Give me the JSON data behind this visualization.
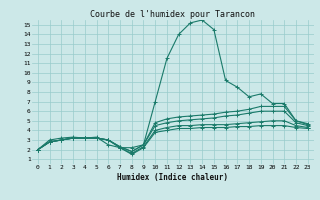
{
  "title": "Courbe de l'humidex pour Tarancon",
  "xlabel": "Humidex (Indice chaleur)",
  "ylabel": "",
  "xlim": [
    -0.5,
    23.5
  ],
  "ylim": [
    0.5,
    15.5
  ],
  "xticks": [
    0,
    1,
    2,
    3,
    4,
    5,
    6,
    7,
    8,
    9,
    10,
    11,
    12,
    13,
    14,
    15,
    16,
    17,
    18,
    19,
    20,
    21,
    22,
    23
  ],
  "yticks": [
    1,
    2,
    3,
    4,
    5,
    6,
    7,
    8,
    9,
    10,
    11,
    12,
    13,
    14,
    15
  ],
  "background_color": "#cce8e8",
  "grid_color": "#99cccc",
  "line_color": "#1a7a6a",
  "lines": [
    [
      2.0,
      3.0,
      3.2,
      3.3,
      3.2,
      3.3,
      2.5,
      2.2,
      2.2,
      2.5,
      7.0,
      11.5,
      14.0,
      15.2,
      15.5,
      14.5,
      9.2,
      8.5,
      7.5,
      7.8,
      6.8,
      6.8,
      5.0,
      4.7
    ],
    [
      2.0,
      2.8,
      3.0,
      3.2,
      3.2,
      3.2,
      3.0,
      2.3,
      1.8,
      2.5,
      4.8,
      5.2,
      5.4,
      5.5,
      5.6,
      5.7,
      5.9,
      6.0,
      6.2,
      6.5,
      6.5,
      6.5,
      5.0,
      4.6
    ],
    [
      2.0,
      2.8,
      3.0,
      3.2,
      3.2,
      3.2,
      3.0,
      2.3,
      1.8,
      2.5,
      4.5,
      4.8,
      5.0,
      5.1,
      5.2,
      5.3,
      5.5,
      5.6,
      5.8,
      6.0,
      6.0,
      6.0,
      4.8,
      4.5
    ],
    [
      2.0,
      2.8,
      3.0,
      3.2,
      3.2,
      3.2,
      3.0,
      2.2,
      1.6,
      2.3,
      4.0,
      4.3,
      4.5,
      4.5,
      4.6,
      4.6,
      4.6,
      4.7,
      4.8,
      4.9,
      5.0,
      5.0,
      4.5,
      4.3
    ],
    [
      2.0,
      2.8,
      3.0,
      3.2,
      3.2,
      3.2,
      3.0,
      2.2,
      1.5,
      2.2,
      3.8,
      4.0,
      4.2,
      4.2,
      4.3,
      4.3,
      4.3,
      4.4,
      4.4,
      4.5,
      4.5,
      4.5,
      4.3,
      4.2
    ]
  ],
  "marker": "+",
  "markersize": 3,
  "linewidth": 0.8,
  "title_fontsize": 6,
  "tick_fontsize": 4.5,
  "xlabel_fontsize": 5.5
}
